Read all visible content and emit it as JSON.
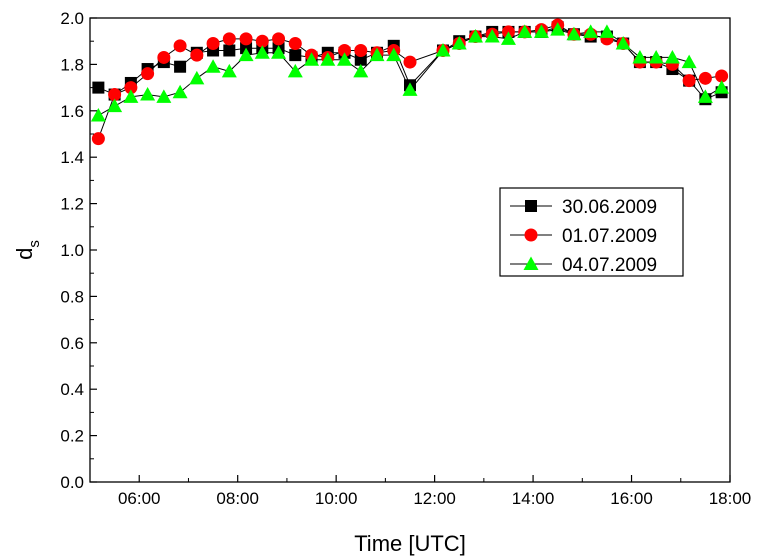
{
  "chart_data": {
    "type": "line",
    "xlabel": "Time [UTC]",
    "ylabel_main": "d",
    "ylabel_sub": "s",
    "xlim": [
      5.0,
      18.0
    ],
    "ylim": [
      0.0,
      2.0
    ],
    "xticks": [
      {
        "value": 6,
        "label": "06:00"
      },
      {
        "value": 8,
        "label": "08:00"
      },
      {
        "value": 10,
        "label": "10:00"
      },
      {
        "value": 12,
        "label": "12:00"
      },
      {
        "value": 14,
        "label": "14:00"
      },
      {
        "value": 16,
        "label": "16:00"
      },
      {
        "value": 18,
        "label": "18:00"
      }
    ],
    "yticks": [
      {
        "value": 0.0,
        "label": "0.0"
      },
      {
        "value": 0.2,
        "label": "0.2"
      },
      {
        "value": 0.4,
        "label": "0.4"
      },
      {
        "value": 0.6,
        "label": "0.6"
      },
      {
        "value": 0.8,
        "label": "0.8"
      },
      {
        "value": 1.0,
        "label": "1.0"
      },
      {
        "value": 1.2,
        "label": "1.2"
      },
      {
        "value": 1.4,
        "label": "1.4"
      },
      {
        "value": 1.6,
        "label": "1.6"
      },
      {
        "value": 1.8,
        "label": "1.8"
      },
      {
        "value": 2.0,
        "label": "2.0"
      }
    ],
    "legend_position": "right-middle",
    "grid": false,
    "x": [
      5.17,
      5.5,
      5.83,
      6.17,
      6.5,
      6.83,
      7.17,
      7.5,
      7.83,
      8.17,
      8.5,
      8.83,
      9.17,
      9.5,
      9.83,
      10.17,
      10.5,
      10.83,
      11.17,
      11.5,
      12.17,
      12.5,
      12.83,
      13.17,
      13.5,
      13.83,
      14.17,
      14.5,
      14.83,
      15.17,
      15.5,
      15.83,
      16.17,
      16.5,
      16.83,
      17.17,
      17.5,
      17.83
    ],
    "series": [
      {
        "name": "30.06.2009",
        "marker": "square",
        "color": "#000000",
        "values": [
          1.7,
          1.67,
          1.72,
          1.78,
          1.81,
          1.79,
          1.85,
          1.86,
          1.86,
          1.87,
          1.87,
          1.87,
          1.84,
          1.83,
          1.85,
          1.85,
          1.82,
          1.85,
          1.88,
          1.71,
          1.86,
          1.9,
          1.92,
          1.94,
          1.94,
          1.94,
          1.94,
          1.96,
          1.93,
          1.92,
          1.92,
          1.89,
          1.81,
          1.81,
          1.78,
          1.73,
          1.65,
          1.68
        ]
      },
      {
        "name": "01.07.2009",
        "marker": "circle",
        "color": "#ff0000",
        "values": [
          1.48,
          1.67,
          1.7,
          1.76,
          1.83,
          1.88,
          1.84,
          1.89,
          1.91,
          1.91,
          1.9,
          1.91,
          1.89,
          1.84,
          1.83,
          1.86,
          1.86,
          1.85,
          1.86,
          1.81,
          1.86,
          1.89,
          1.92,
          1.93,
          1.94,
          1.94,
          1.95,
          1.97,
          1.93,
          1.93,
          1.91,
          1.89,
          1.81,
          1.81,
          1.8,
          1.73,
          1.74,
          1.75
        ]
      },
      {
        "name": "04.07.2009",
        "marker": "triangle",
        "color": "#00ff00",
        "values": [
          1.58,
          1.62,
          1.66,
          1.67,
          1.66,
          1.68,
          1.74,
          1.79,
          1.77,
          1.84,
          1.85,
          1.85,
          1.77,
          1.82,
          1.82,
          1.82,
          1.77,
          1.84,
          1.84,
          1.69,
          1.86,
          1.89,
          1.92,
          1.92,
          1.91,
          1.94,
          1.94,
          1.95,
          1.93,
          1.94,
          1.94,
          1.89,
          1.83,
          1.83,
          1.83,
          1.81,
          1.66,
          1.7
        ]
      }
    ]
  }
}
